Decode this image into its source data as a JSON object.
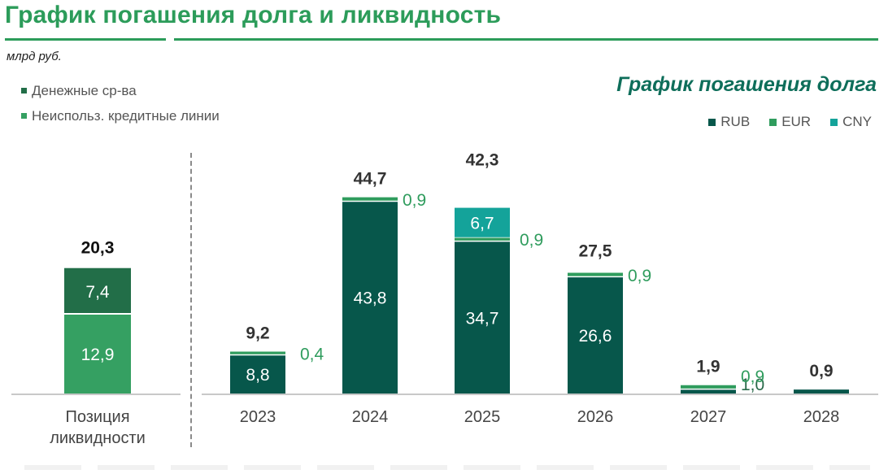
{
  "title": "График погашения долга и ликвидность",
  "unit": "млрд руб.",
  "subtitle": "График погашения долга",
  "colors": {
    "title": "#2c9c5a",
    "rub": "#07574b",
    "eur": "#2f9c5d",
    "cny": "#14a39a",
    "cash": "#226e48",
    "credit_lines": "#35a062",
    "eur_label": "#2f9c5d",
    "divider": "#8a8a8a"
  },
  "legend_left": [
    {
      "label": "Денежные ср-ва",
      "color": "#226e48"
    },
    {
      "label": "Неиспольз. кредитные линии",
      "color": "#35a062"
    }
  ],
  "legend_right": [
    {
      "label": "RUB",
      "color": "#07574b"
    },
    {
      "label": "EUR",
      "color": "#2f9c5d"
    },
    {
      "label": "CNY",
      "color": "#14a39a"
    }
  ],
  "chart_data": [
    {
      "type": "bar",
      "stacked": true,
      "categories": [
        "Позиция ликвидности"
      ],
      "series": [
        {
          "name": "Неиспольз. кредитные линии",
          "values": [
            12.9
          ],
          "labels": [
            "12,9"
          ]
        },
        {
          "name": "Денежные ср-ва",
          "values": [
            7.4
          ],
          "labels": [
            "7,4"
          ]
        }
      ],
      "totals": [
        20.3
      ],
      "total_labels": [
        "20,3"
      ]
    },
    {
      "type": "bar",
      "stacked": true,
      "title": "График погашения долга",
      "categories": [
        "2023",
        "2024",
        "2025",
        "2026",
        "2027",
        "2028"
      ],
      "series": [
        {
          "name": "RUB",
          "values": [
            8.8,
            43.8,
            34.7,
            26.6,
            1.0,
            0.9
          ],
          "labels": [
            "8,8",
            "43,8",
            "34,7",
            "26,6",
            "1,0",
            ""
          ]
        },
        {
          "name": "EUR",
          "values": [
            0.4,
            0.9,
            0.9,
            0.9,
            0.9,
            0
          ],
          "labels": [
            "0,4",
            "0,9",
            "0,9",
            "0,9",
            "0,9",
            ""
          ]
        },
        {
          "name": "CNY",
          "values": [
            0,
            0,
            6.7,
            0,
            0,
            0
          ],
          "labels": [
            "",
            "",
            "6,7",
            "",
            "",
            ""
          ]
        }
      ],
      "totals": [
        9.2,
        44.7,
        42.3,
        27.5,
        1.9,
        0.9
      ],
      "total_labels": [
        "9,2",
        "44,7",
        "42,3",
        "27,5",
        "1,9",
        "0,9"
      ],
      "grid": false
    }
  ]
}
